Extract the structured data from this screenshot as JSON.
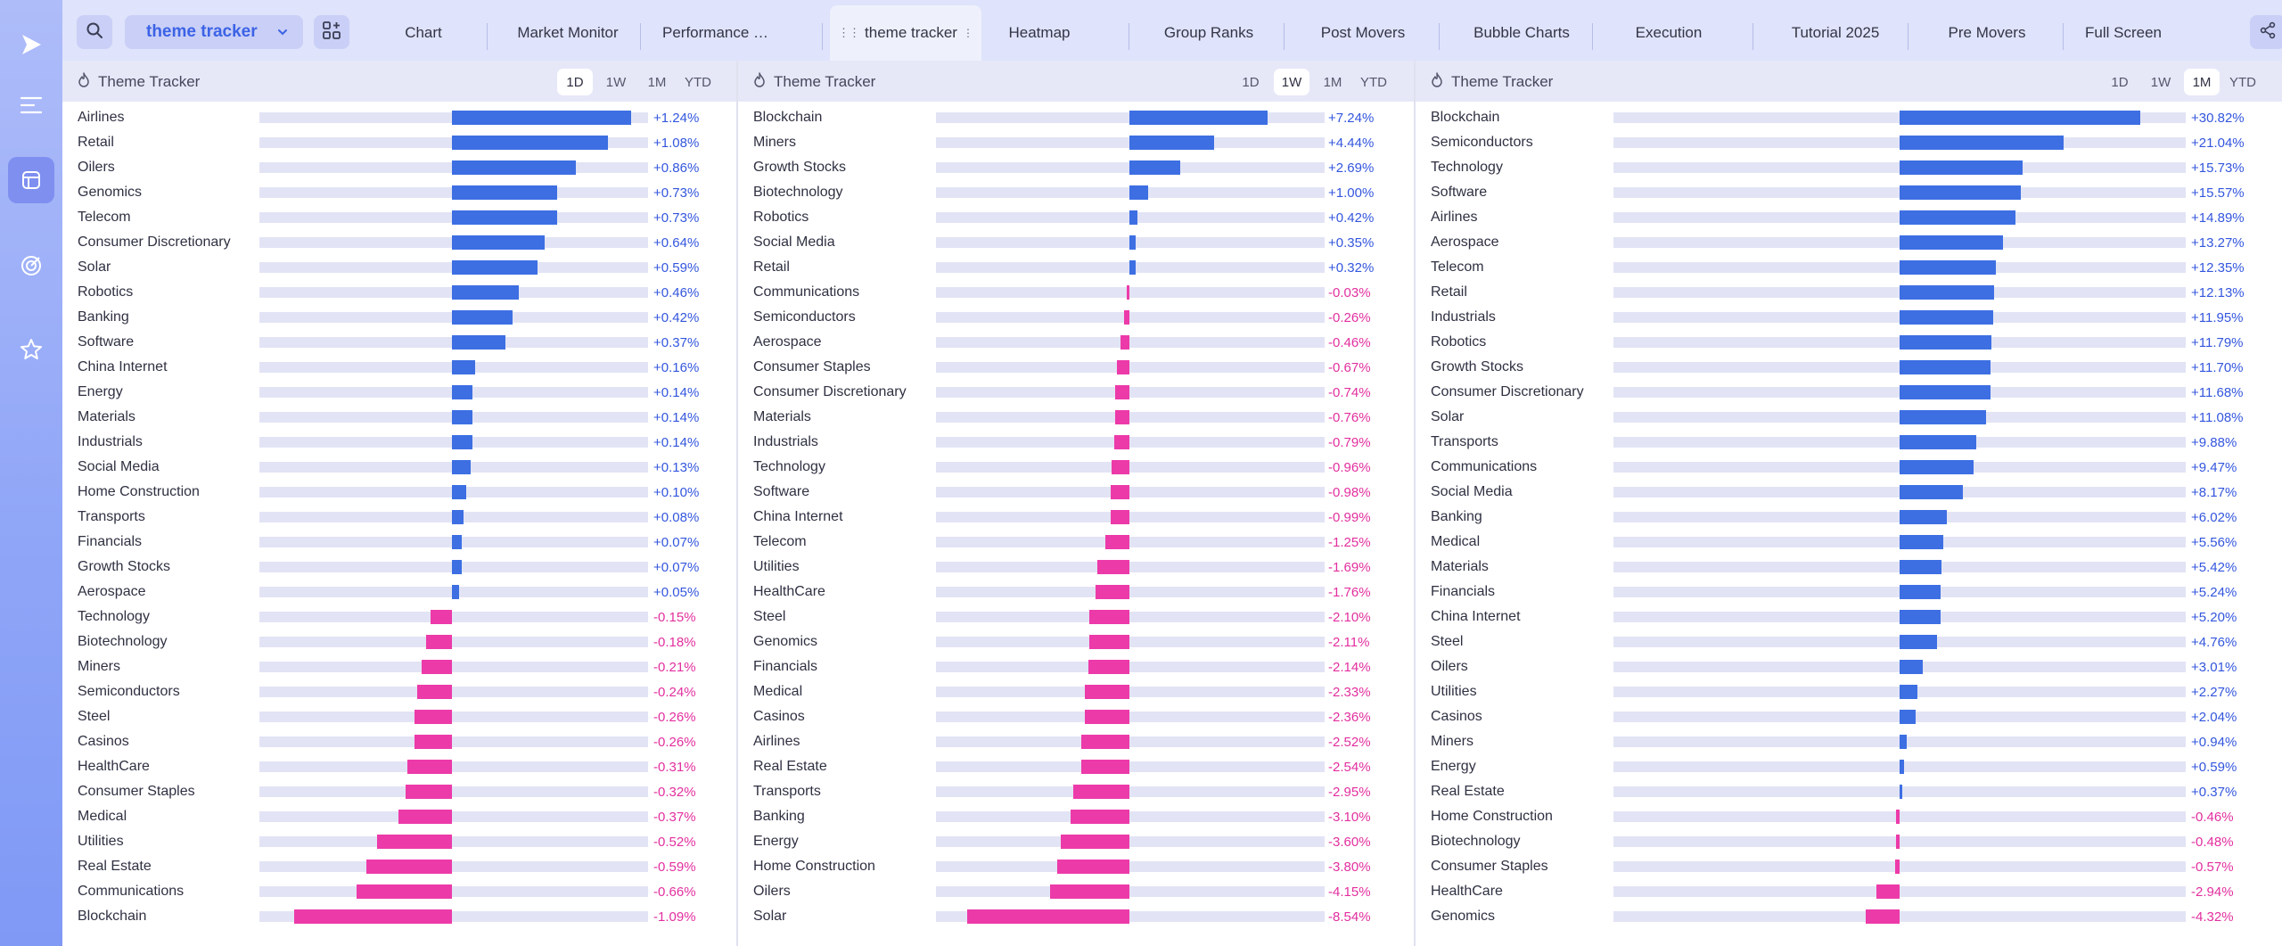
{
  "topbar": {
    "tracker_dropdown": "theme tracker",
    "tabs": [
      {
        "label": "Chart"
      },
      {
        "label": "Market Monitor"
      },
      {
        "label": "Performance Overview"
      },
      {
        "label": "theme tracker",
        "active": true
      },
      {
        "label": "Heatmap"
      },
      {
        "label": "Group Ranks"
      },
      {
        "label": "Post Movers"
      },
      {
        "label": "Bubble Charts"
      },
      {
        "label": "Execution"
      },
      {
        "label": "Tutorial 2025"
      },
      {
        "label": "Pre Movers"
      },
      {
        "label": "Full Screen"
      }
    ]
  },
  "colors": {
    "positive": "#3d6fe3",
    "negative": "#ec3aa9",
    "accent": "#3c63e6"
  },
  "icons": {
    "logo": "play-logo-icon",
    "menu": "menu-lines-icon",
    "tracker": "layout-box-icon",
    "target": "target-icon",
    "favorites": "star-icon",
    "search": "search-icon",
    "layout": "grid-layout-icon",
    "share": "share-icon",
    "bell": "bell-icon"
  },
  "panels": [
    {
      "title": "Theme Tracker",
      "periods": [
        "1D",
        "1W",
        "1M",
        "YTD"
      ],
      "active_period": "1D",
      "rows": [
        {
          "name": "Airlines",
          "value": 1.24,
          "label": "+1.24%"
        },
        {
          "name": "Retail",
          "value": 1.08,
          "label": "+1.08%"
        },
        {
          "name": "Oilers",
          "value": 0.86,
          "label": "+0.86%"
        },
        {
          "name": "Genomics",
          "value": 0.73,
          "label": "+0.73%"
        },
        {
          "name": "Telecom",
          "value": 0.73,
          "label": "+0.73%"
        },
        {
          "name": "Consumer Discretionary",
          "value": 0.64,
          "label": "+0.64%"
        },
        {
          "name": "Solar",
          "value": 0.59,
          "label": "+0.59%"
        },
        {
          "name": "Robotics",
          "value": 0.46,
          "label": "+0.46%"
        },
        {
          "name": "Banking",
          "value": 0.42,
          "label": "+0.42%"
        },
        {
          "name": "Software",
          "value": 0.37,
          "label": "+0.37%"
        },
        {
          "name": "China Internet",
          "value": 0.16,
          "label": "+0.16%"
        },
        {
          "name": "Energy",
          "value": 0.14,
          "label": "+0.14%"
        },
        {
          "name": "Materials",
          "value": 0.14,
          "label": "+0.14%"
        },
        {
          "name": "Industrials",
          "value": 0.14,
          "label": "+0.14%"
        },
        {
          "name": "Social Media",
          "value": 0.13,
          "label": "+0.13%"
        },
        {
          "name": "Home Construction",
          "value": 0.1,
          "label": "+0.10%"
        },
        {
          "name": "Transports",
          "value": 0.08,
          "label": "+0.08%"
        },
        {
          "name": "Financials",
          "value": 0.07,
          "label": "+0.07%"
        },
        {
          "name": "Growth Stocks",
          "value": 0.07,
          "label": "+0.07%"
        },
        {
          "name": "Aerospace",
          "value": 0.05,
          "label": "+0.05%"
        },
        {
          "name": "Technology",
          "value": -0.15,
          "label": "-0.15%"
        },
        {
          "name": "Biotechnology",
          "value": -0.18,
          "label": "-0.18%"
        },
        {
          "name": "Miners",
          "value": -0.21,
          "label": "-0.21%"
        },
        {
          "name": "Semiconductors",
          "value": -0.24,
          "label": "-0.24%"
        },
        {
          "name": "Steel",
          "value": -0.26,
          "label": "-0.26%"
        },
        {
          "name": "Casinos",
          "value": -0.26,
          "label": "-0.26%"
        },
        {
          "name": "HealthCare",
          "value": -0.31,
          "label": "-0.31%"
        },
        {
          "name": "Consumer Staples",
          "value": -0.32,
          "label": "-0.32%"
        },
        {
          "name": "Medical",
          "value": -0.37,
          "label": "-0.37%"
        },
        {
          "name": "Utilities",
          "value": -0.52,
          "label": "-0.52%"
        },
        {
          "name": "Real Estate",
          "value": -0.59,
          "label": "-0.59%"
        },
        {
          "name": "Communications",
          "value": -0.66,
          "label": "-0.66%"
        },
        {
          "name": "Blockchain",
          "value": -1.09,
          "label": "-1.09%"
        }
      ]
    },
    {
      "title": "Theme Tracker",
      "periods": [
        "1D",
        "1W",
        "1M",
        "YTD"
      ],
      "active_period": "1W",
      "rows": [
        {
          "name": "Blockchain",
          "value": 7.24,
          "label": "+7.24%"
        },
        {
          "name": "Miners",
          "value": 4.44,
          "label": "+4.44%"
        },
        {
          "name": "Growth Stocks",
          "value": 2.69,
          "label": "+2.69%"
        },
        {
          "name": "Biotechnology",
          "value": 1.0,
          "label": "+1.00%"
        },
        {
          "name": "Robotics",
          "value": 0.42,
          "label": "+0.42%"
        },
        {
          "name": "Social Media",
          "value": 0.35,
          "label": "+0.35%"
        },
        {
          "name": "Retail",
          "value": 0.32,
          "label": "+0.32%"
        },
        {
          "name": "Communications",
          "value": -0.03,
          "label": "-0.03%"
        },
        {
          "name": "Semiconductors",
          "value": -0.26,
          "label": "-0.26%"
        },
        {
          "name": "Aerospace",
          "value": -0.46,
          "label": "-0.46%"
        },
        {
          "name": "Consumer Staples",
          "value": -0.67,
          "label": "-0.67%"
        },
        {
          "name": "Consumer Discretionary",
          "value": -0.74,
          "label": "-0.74%"
        },
        {
          "name": "Materials",
          "value": -0.76,
          "label": "-0.76%"
        },
        {
          "name": "Industrials",
          "value": -0.79,
          "label": "-0.79%"
        },
        {
          "name": "Technology",
          "value": -0.96,
          "label": "-0.96%"
        },
        {
          "name": "Software",
          "value": -0.98,
          "label": "-0.98%"
        },
        {
          "name": "China Internet",
          "value": -0.99,
          "label": "-0.99%"
        },
        {
          "name": "Telecom",
          "value": -1.25,
          "label": "-1.25%"
        },
        {
          "name": "Utilities",
          "value": -1.69,
          "label": "-1.69%"
        },
        {
          "name": "HealthCare",
          "value": -1.76,
          "label": "-1.76%"
        },
        {
          "name": "Steel",
          "value": -2.1,
          "label": "-2.10%"
        },
        {
          "name": "Genomics",
          "value": -2.11,
          "label": "-2.11%"
        },
        {
          "name": "Financials",
          "value": -2.14,
          "label": "-2.14%"
        },
        {
          "name": "Medical",
          "value": -2.33,
          "label": "-2.33%"
        },
        {
          "name": "Casinos",
          "value": -2.36,
          "label": "-2.36%"
        },
        {
          "name": "Airlines",
          "value": -2.52,
          "label": "-2.52%"
        },
        {
          "name": "Real Estate",
          "value": -2.54,
          "label": "-2.54%"
        },
        {
          "name": "Transports",
          "value": -2.95,
          "label": "-2.95%"
        },
        {
          "name": "Banking",
          "value": -3.1,
          "label": "-3.10%"
        },
        {
          "name": "Energy",
          "value": -3.6,
          "label": "-3.60%"
        },
        {
          "name": "Home Construction",
          "value": -3.8,
          "label": "-3.80%"
        },
        {
          "name": "Oilers",
          "value": -4.15,
          "label": "-4.15%"
        },
        {
          "name": "Solar",
          "value": -8.54,
          "label": "-8.54%"
        }
      ]
    },
    {
      "title": "Theme Tracker",
      "periods": [
        "1D",
        "1W",
        "1M",
        "YTD"
      ],
      "active_period": "1M",
      "rows": [
        {
          "name": "Blockchain",
          "value": 30.82,
          "label": "+30.82%"
        },
        {
          "name": "Semiconductors",
          "value": 21.04,
          "label": "+21.04%"
        },
        {
          "name": "Technology",
          "value": 15.73,
          "label": "+15.73%"
        },
        {
          "name": "Software",
          "value": 15.57,
          "label": "+15.57%"
        },
        {
          "name": "Airlines",
          "value": 14.89,
          "label": "+14.89%"
        },
        {
          "name": "Aerospace",
          "value": 13.27,
          "label": "+13.27%"
        },
        {
          "name": "Telecom",
          "value": 12.35,
          "label": "+12.35%"
        },
        {
          "name": "Retail",
          "value": 12.13,
          "label": "+12.13%"
        },
        {
          "name": "Industrials",
          "value": 11.95,
          "label": "+11.95%"
        },
        {
          "name": "Robotics",
          "value": 11.79,
          "label": "+11.79%"
        },
        {
          "name": "Growth Stocks",
          "value": 11.7,
          "label": "+11.70%"
        },
        {
          "name": "Consumer Discretionary",
          "value": 11.68,
          "label": "+11.68%"
        },
        {
          "name": "Solar",
          "value": 11.08,
          "label": "+11.08%"
        },
        {
          "name": "Transports",
          "value": 9.88,
          "label": "+9.88%"
        },
        {
          "name": "Communications",
          "value": 9.47,
          "label": "+9.47%"
        },
        {
          "name": "Social Media",
          "value": 8.17,
          "label": "+8.17%"
        },
        {
          "name": "Banking",
          "value": 6.02,
          "label": "+6.02%"
        },
        {
          "name": "Medical",
          "value": 5.56,
          "label": "+5.56%"
        },
        {
          "name": "Materials",
          "value": 5.42,
          "label": "+5.42%"
        },
        {
          "name": "Financials",
          "value": 5.24,
          "label": "+5.24%"
        },
        {
          "name": "China Internet",
          "value": 5.2,
          "label": "+5.20%"
        },
        {
          "name": "Steel",
          "value": 4.76,
          "label": "+4.76%"
        },
        {
          "name": "Oilers",
          "value": 3.01,
          "label": "+3.01%"
        },
        {
          "name": "Utilities",
          "value": 2.27,
          "label": "+2.27%"
        },
        {
          "name": "Casinos",
          "value": 2.04,
          "label": "+2.04%"
        },
        {
          "name": "Miners",
          "value": 0.94,
          "label": "+0.94%"
        },
        {
          "name": "Energy",
          "value": 0.59,
          "label": "+0.59%"
        },
        {
          "name": "Real Estate",
          "value": 0.37,
          "label": "+0.37%"
        },
        {
          "name": "Home Construction",
          "value": -0.46,
          "label": "-0.46%"
        },
        {
          "name": "Biotechnology",
          "value": -0.48,
          "label": "-0.48%"
        },
        {
          "name": "Consumer Staples",
          "value": -0.57,
          "label": "-0.57%"
        },
        {
          "name": "HealthCare",
          "value": -2.94,
          "label": "-2.94%"
        },
        {
          "name": "Genomics",
          "value": -4.32,
          "label": "-4.32%"
        }
      ]
    }
  ]
}
